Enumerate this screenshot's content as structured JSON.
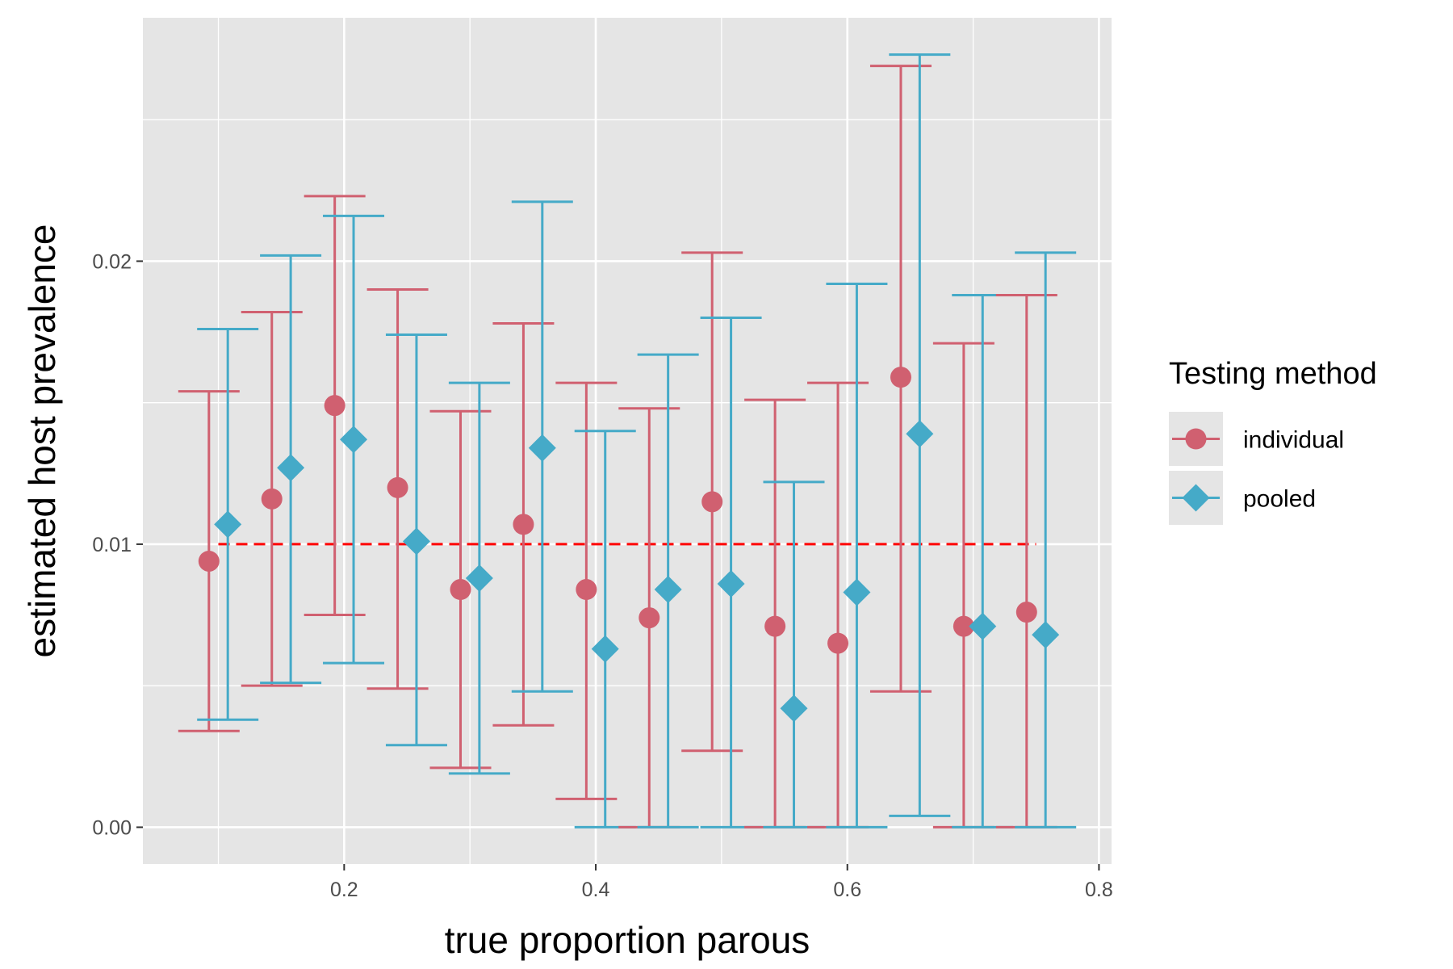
{
  "chart_data": {
    "type": "scatter",
    "title": "",
    "xlabel": "true proportion parous",
    "ylabel": "estimated host prevalence",
    "xlim": [
      0.04,
      0.81
    ],
    "ylim": [
      -0.0013,
      0.0286
    ],
    "x_ticks": [
      0.2,
      0.4,
      0.6,
      0.8
    ],
    "x_tick_labels": [
      "0.2",
      "0.4",
      "0.6",
      "0.8"
    ],
    "y_ticks": [
      0,
      0.01,
      0.02
    ],
    "y_tick_labels": [
      "0.00",
      "0.01",
      "0.02"
    ],
    "grid": true,
    "legend_position": "right",
    "legend_title": "Testing method",
    "reference_line": {
      "y": 0.01,
      "x_from": 0.1,
      "x_to": 0.75,
      "style": "dashed",
      "color": "#ff0000"
    },
    "series": [
      {
        "name": "individual",
        "marker": "circle",
        "color": "#d06070",
        "points": [
          {
            "x": 0.1,
            "y": 0.0094,
            "lo": 0.0034,
            "hi": 0.0154
          },
          {
            "x": 0.15,
            "y": 0.0116,
            "lo": 0.005,
            "hi": 0.0182
          },
          {
            "x": 0.2,
            "y": 0.0149,
            "lo": 0.0075,
            "hi": 0.0223
          },
          {
            "x": 0.25,
            "y": 0.012,
            "lo": 0.0049,
            "hi": 0.019
          },
          {
            "x": 0.3,
            "y": 0.0084,
            "lo": 0.0021,
            "hi": 0.0147
          },
          {
            "x": 0.35,
            "y": 0.0107,
            "lo": 0.0036,
            "hi": 0.0178
          },
          {
            "x": 0.4,
            "y": 0.0084,
            "lo": 0.001,
            "hi": 0.0157
          },
          {
            "x": 0.45,
            "y": 0.0074,
            "lo": 0.0,
            "hi": 0.0148
          },
          {
            "x": 0.5,
            "y": 0.0115,
            "lo": 0.0027,
            "hi": 0.0203
          },
          {
            "x": 0.55,
            "y": 0.0071,
            "lo": 0.0,
            "hi": 0.0151
          },
          {
            "x": 0.6,
            "y": 0.0065,
            "lo": 0.0,
            "hi": 0.0157
          },
          {
            "x": 0.65,
            "y": 0.0159,
            "lo": 0.0048,
            "hi": 0.0269
          },
          {
            "x": 0.7,
            "y": 0.0071,
            "lo": 0.0,
            "hi": 0.0171
          },
          {
            "x": 0.75,
            "y": 0.0076,
            "lo": 0.0,
            "hi": 0.0188
          }
        ]
      },
      {
        "name": "pooled",
        "marker": "diamond",
        "color": "#45aac8",
        "points": [
          {
            "x": 0.1,
            "y": 0.0107,
            "lo": 0.0038,
            "hi": 0.0176
          },
          {
            "x": 0.15,
            "y": 0.0127,
            "lo": 0.0051,
            "hi": 0.0202
          },
          {
            "x": 0.2,
            "y": 0.0137,
            "lo": 0.0058,
            "hi": 0.0216
          },
          {
            "x": 0.25,
            "y": 0.0101,
            "lo": 0.0029,
            "hi": 0.0174
          },
          {
            "x": 0.3,
            "y": 0.0088,
            "lo": 0.0019,
            "hi": 0.0157
          },
          {
            "x": 0.35,
            "y": 0.0134,
            "lo": 0.0048,
            "hi": 0.0221
          },
          {
            "x": 0.4,
            "y": 0.0063,
            "lo": 0.0,
            "hi": 0.014
          },
          {
            "x": 0.45,
            "y": 0.0084,
            "lo": 0.0,
            "hi": 0.0167
          },
          {
            "x": 0.5,
            "y": 0.0086,
            "lo": 0.0,
            "hi": 0.018
          },
          {
            "x": 0.55,
            "y": 0.0042,
            "lo": 0.0,
            "hi": 0.0122
          },
          {
            "x": 0.6,
            "y": 0.0083,
            "lo": 0.0,
            "hi": 0.0192
          },
          {
            "x": 0.65,
            "y": 0.0139,
            "lo": 0.0004,
            "hi": 0.0273
          },
          {
            "x": 0.7,
            "y": 0.0071,
            "lo": 0.0,
            "hi": 0.0188
          },
          {
            "x": 0.75,
            "y": 0.0068,
            "lo": 0.0,
            "hi": 0.0203
          }
        ]
      }
    ]
  }
}
